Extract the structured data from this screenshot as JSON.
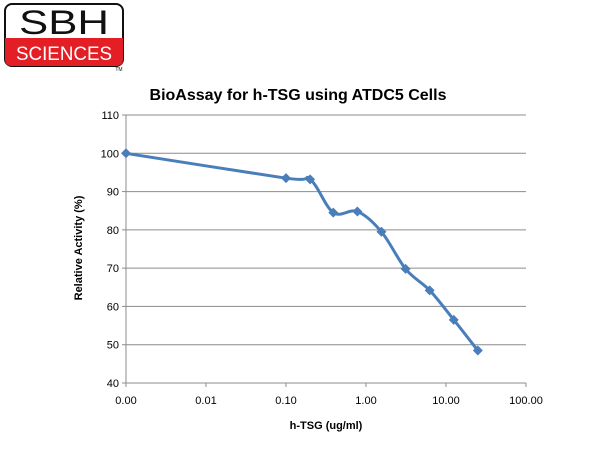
{
  "logo": {
    "line1": "SBH",
    "line2": "SCIENCES",
    "tm": "TM",
    "colors": {
      "red": "#e31e24",
      "black": "#111111",
      "white": "#ffffff"
    }
  },
  "chart_data": {
    "type": "line",
    "title": "BioAssay for h-TSG using ATDC5 Cells",
    "xlabel": "h-TSG (ug/ml)",
    "ylabel": "Relative Activity (%)",
    "x_scale": "log",
    "x_ticks": [
      "0.00",
      "0.01",
      "0.10",
      "1.00",
      "10.00",
      "100.00"
    ],
    "y_ticks": [
      "40",
      "50",
      "60",
      "70",
      "80",
      "90",
      "100",
      "110"
    ],
    "ylim": [
      40,
      110
    ],
    "grid": "horizontal",
    "legend": "none",
    "series": [
      {
        "color": "#4a7ebb",
        "points": [
          {
            "x": 0.001,
            "y": 100.0
          },
          {
            "x": 0.1,
            "y": 93.5
          },
          {
            "x": 0.2,
            "y": 93.2
          },
          {
            "x": 0.39,
            "y": 84.5
          },
          {
            "x": 0.78,
            "y": 84.8
          },
          {
            "x": 1.56,
            "y": 79.5
          },
          {
            "x": 3.125,
            "y": 69.8
          },
          {
            "x": 6.25,
            "y": 64.2
          },
          {
            "x": 12.5,
            "y": 56.5
          },
          {
            "x": 25.0,
            "y": 48.5
          }
        ]
      }
    ]
  }
}
